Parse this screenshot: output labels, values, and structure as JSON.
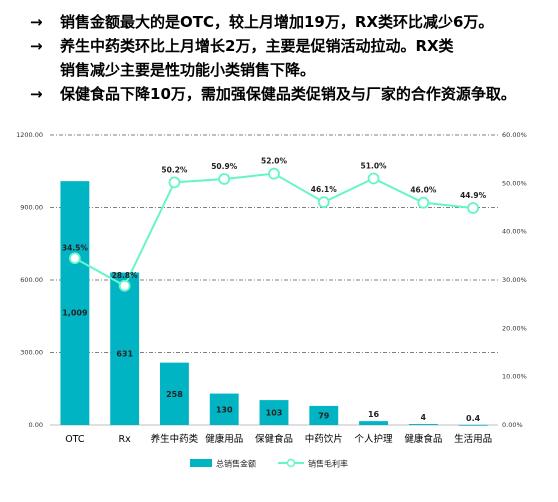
{
  "notes": [
    {
      "arrow": "→",
      "lines": [
        "销售金额最大的是OTC，较上月增加19万，RX类环比减少6万。"
      ]
    },
    {
      "arrow": "→",
      "lines": [
        "养生中药类环比上月增长2万，主要是促销活动拉动。RX类",
        "销售减少主要是性功能小类销售下降。"
      ]
    },
    {
      "arrow": "→",
      "lines": [
        "保健食品下降10万，需加强保健品类促销及与厂家的合作资源争取。"
      ]
    }
  ],
  "colors": {
    "bar": "#00b4c4",
    "line": "#66f5c8",
    "grid": "#555555"
  },
  "chart_data": {
    "type": "bar",
    "categories": [
      "OTC",
      "Rx",
      "养生中药类",
      "健康用品",
      "保健食品",
      "中药饮片",
      "个人护理",
      "健康食品",
      "生活用品"
    ],
    "series": [
      {
        "name": "总销售金额",
        "type": "bar",
        "axis": "left",
        "values": [
          1009,
          631,
          258,
          130,
          103,
          79,
          16,
          4,
          0.4
        ],
        "labels": [
          "1,009",
          "631",
          "258",
          "130",
          "103",
          "79",
          "16",
          "4",
          "0.4"
        ]
      },
      {
        "name": "销售毛利率",
        "type": "line",
        "axis": "right",
        "values": [
          34.5,
          28.8,
          50.2,
          50.9,
          52.0,
          46.1,
          51.0,
          46.0,
          44.9
        ],
        "labels": [
          "34.5%",
          "28.8%",
          "50.2%",
          "50.9%",
          "52.0%",
          "46.1%",
          "51.0%",
          "46.0%",
          "44.9%"
        ]
      }
    ],
    "y_left": {
      "ticks": [
        "0.00",
        "300.00",
        "600.00",
        "900.00",
        "1200.00"
      ],
      "range": [
        0,
        1200
      ]
    },
    "y_right": {
      "ticks": [
        "0.00%",
        "10.00%",
        "20.00%",
        "30.00%",
        "40.00%",
        "50.00%",
        "60.00%"
      ],
      "range": [
        0,
        60
      ]
    },
    "grid": true,
    "legend_position": "bottom"
  }
}
